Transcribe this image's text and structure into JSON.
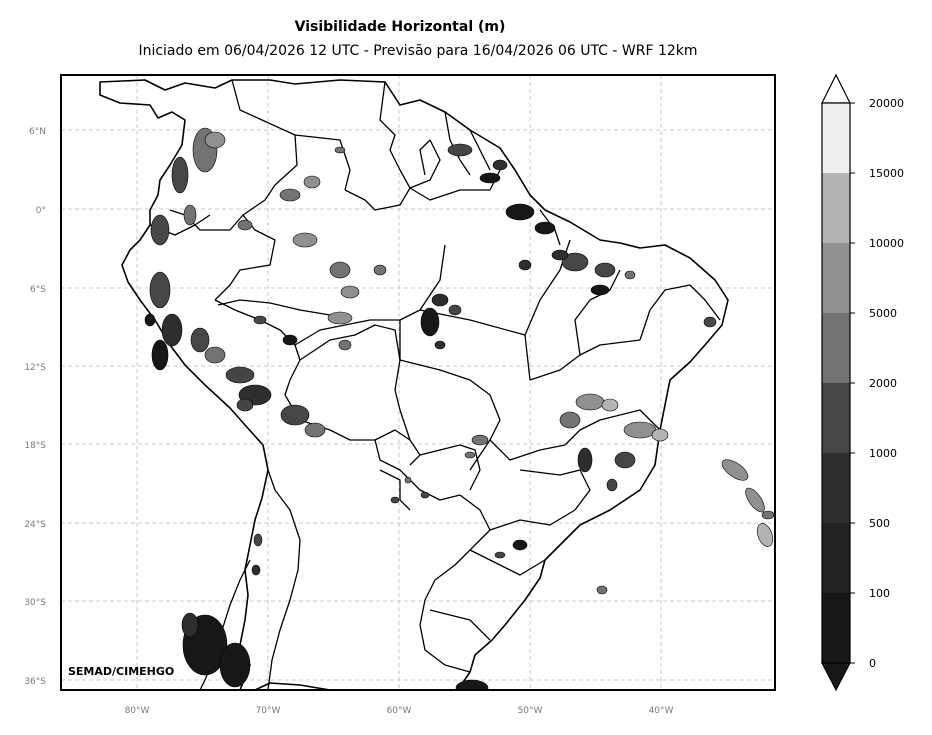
{
  "title": "Visibilidade Horizontal (m)",
  "subtitle": "Iniciado em 06/04/2026 12 UTC - Previsão para 16/04/2026 06 UTC - WRF 12km",
  "credit": "SEMAD/CIMEHGO",
  "axes": {
    "lon_labels": [
      "80°W",
      "70°W",
      "60°W",
      "50°W",
      "40°W"
    ],
    "lat_labels": [
      "6°N",
      "0°",
      "6°S",
      "12°S",
      "18°S",
      "24°S",
      "30°S",
      "36°S"
    ],
    "gridlines": true
  },
  "colorbar": {
    "ticks": [
      "20000",
      "15000",
      "10000",
      "5000",
      "2000",
      "1000",
      "500",
      "100",
      "0"
    ],
    "colors": [
      "#efefef",
      "#b4b4b4",
      "#909090",
      "#737373",
      "#464646",
      "#2e2e2e",
      "#222222",
      "#171717"
    ],
    "extend": "both"
  }
}
